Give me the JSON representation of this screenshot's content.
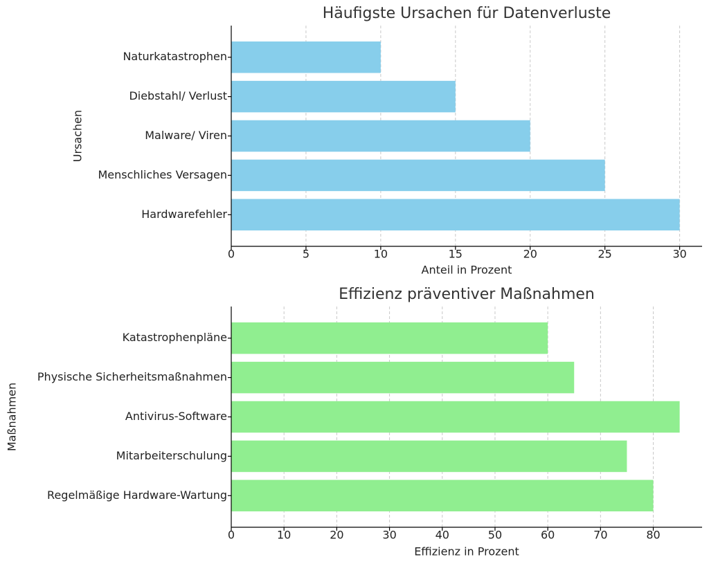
{
  "chart_data": [
    {
      "type": "barh",
      "title": "Häufigste Ursachen für Datenverluste",
      "x_label": "Anteil in Prozent",
      "y_label": "Ursachen",
      "categories": [
        "Hardwarefehler",
        "Menschliches Versagen",
        "Malware/ Viren",
        "Diebstahl/ Verlust",
        "Naturkatastrophen"
      ],
      "values": [
        30,
        25,
        20,
        15,
        10
      ],
      "color": "#87ceeb",
      "xlim": [
        0,
        31.5
      ],
      "xticks": [
        0,
        5,
        10,
        15,
        20,
        25,
        30
      ],
      "grid": true
    },
    {
      "type": "barh",
      "title": "Effizienz präventiver Maßnahmen",
      "x_label": "Effizienz in Prozent",
      "y_label": "Maßnahmen",
      "categories": [
        "Regelmäßige Hardware-Wartung",
        "Mitarbeiterschulung",
        "Antivirus-Software",
        "Physische Sicherheitsmaßnahmen",
        "Katastrophenpläne"
      ],
      "values": [
        80,
        75,
        85,
        65,
        60
      ],
      "color": "#90ee90",
      "xlim": [
        0,
        89.25
      ],
      "xticks": [
        0,
        10,
        20,
        30,
        40,
        50,
        60,
        70,
        80
      ],
      "grid": true
    }
  ]
}
